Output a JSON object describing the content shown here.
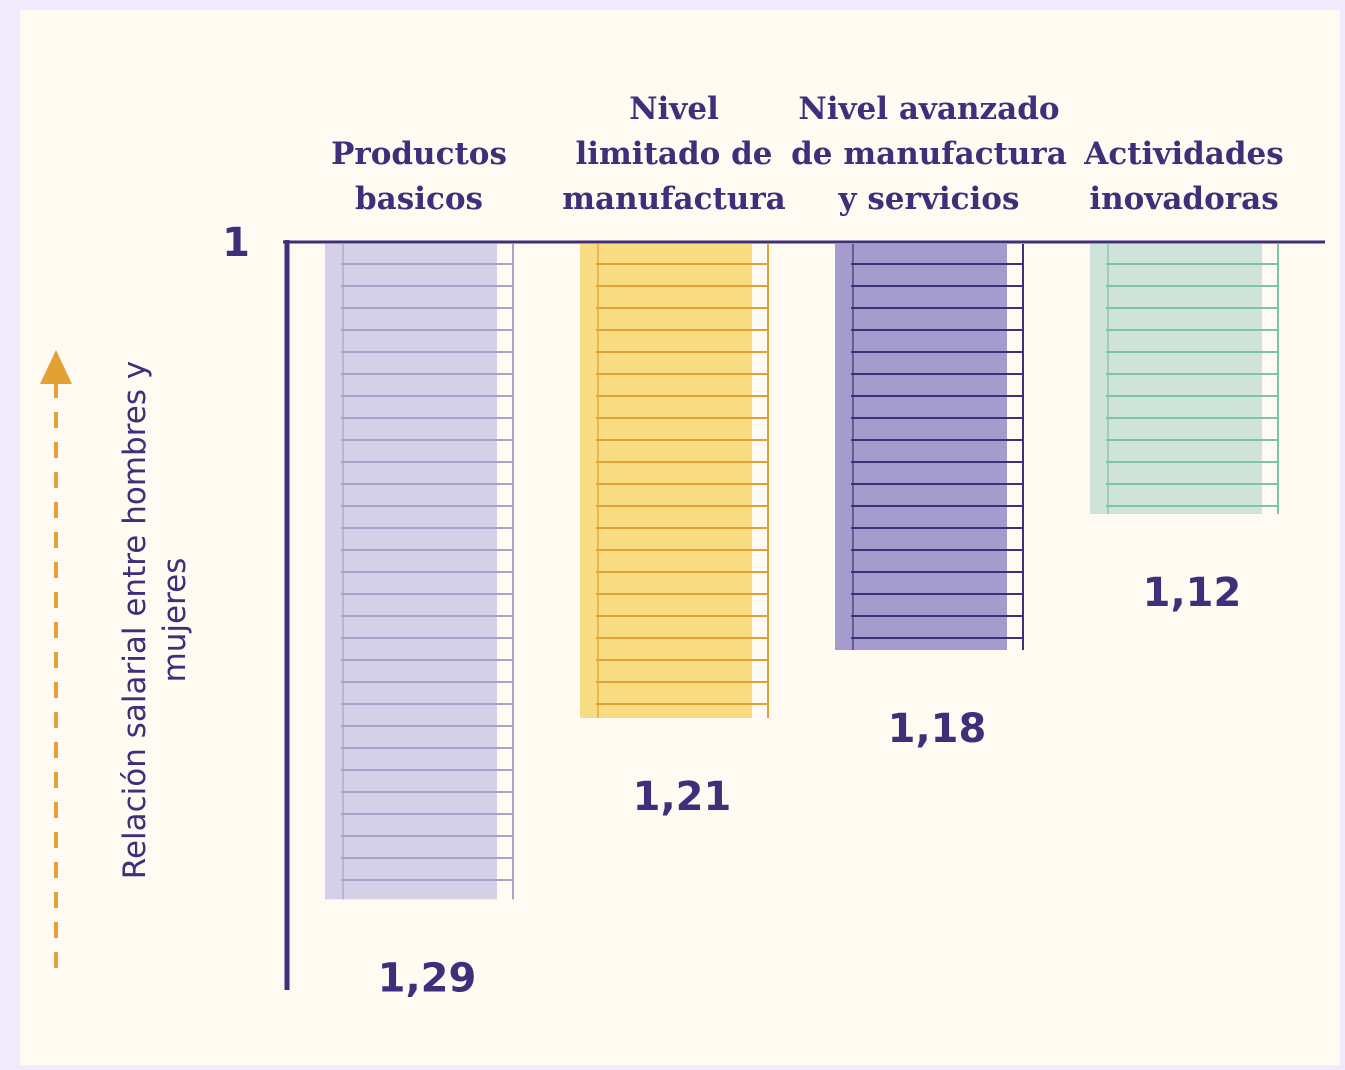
{
  "chart_data": {
    "type": "bar",
    "categories": [
      "Productos\nbasicos",
      "Nivel\nlimitado de\nmanufactura",
      "Nivel avanzado\nde manufactura\ny servicios",
      "Actividades\ninovadoras"
    ],
    "values": [
      1.29,
      1.21,
      1.18,
      1.12
    ],
    "value_labels": [
      "1,29",
      "1,21",
      "1,18",
      "1,12"
    ],
    "colors": [
      "#d4d0e8",
      "#f7dc82",
      "#a39ccc",
      "#cfe3db"
    ],
    "stripe_colors": [
      "#a9a3cc",
      "#e3a035",
      "#3f2f7a",
      "#7cc4a8"
    ],
    "ylabel": "Relación salarial entre hombres y\nmujeres",
    "ylim": [
      1,
      1.33
    ],
    "yticks": [
      1
    ],
    "y_reversed": true
  }
}
